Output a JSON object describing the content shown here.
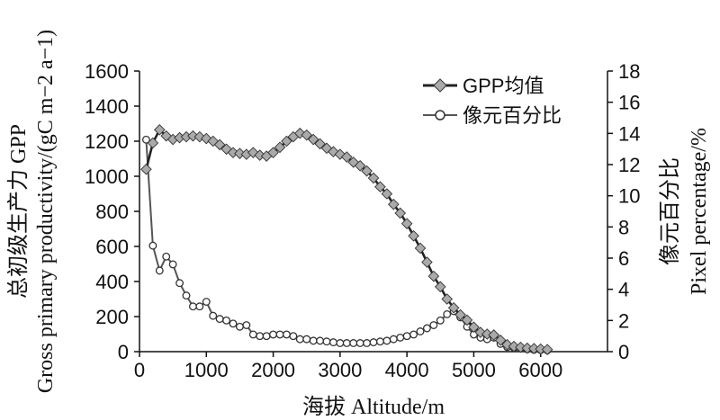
{
  "chart_data": {
    "type": "line",
    "xlabel": "海拔 Altitude/m",
    "ylabel_left": [
      "总初级生产力 GPP",
      "Gross primary productivity/(gC m−2 a−1)"
    ],
    "ylabel_right": [
      "像元百分比",
      "Pixel percentage/%"
    ],
    "xlim": [
      0,
      7000
    ],
    "ylim_left": [
      0,
      1600
    ],
    "ylim_right": [
      0,
      18
    ],
    "x_ticks": [
      "0",
      "1000",
      "2000",
      "3000",
      "4000",
      "5000",
      "6000"
    ],
    "y_left_ticks": [
      "0",
      "200",
      "400",
      "600",
      "800",
      "1000",
      "1200",
      "1400",
      "1600"
    ],
    "y_right_ticks": [
      "0",
      "2",
      "4",
      "6",
      "8",
      "10",
      "12",
      "14",
      "16",
      "18"
    ],
    "grid": false,
    "legend_position": "top-right",
    "series": [
      {
        "name": "GPP均值",
        "axis": "left",
        "marker": "diamond",
        "x": [
          100,
          200,
          300,
          400,
          500,
          600,
          700,
          800,
          900,
          1000,
          1100,
          1200,
          1300,
          1400,
          1500,
          1600,
          1700,
          1800,
          1900,
          2000,
          2100,
          2200,
          2300,
          2400,
          2500,
          2600,
          2700,
          2800,
          2900,
          3000,
          3100,
          3200,
          3300,
          3400,
          3500,
          3600,
          3700,
          3800,
          3900,
          4000,
          4100,
          4200,
          4300,
          4400,
          4500,
          4600,
          4700,
          4800,
          4900,
          5000,
          5100,
          5200,
          5300,
          5400,
          5500,
          5600,
          5700,
          5800,
          5900,
          6000,
          6100
        ],
        "y": [
          1040,
          1190,
          1265,
          1230,
          1210,
          1220,
          1225,
          1230,
          1225,
          1215,
          1200,
          1180,
          1155,
          1135,
          1130,
          1125,
          1135,
          1120,
          1115,
          1135,
          1165,
          1200,
          1225,
          1245,
          1235,
          1210,
          1185,
          1160,
          1140,
          1125,
          1110,
          1080,
          1060,
          1030,
          990,
          940,
          900,
          840,
          790,
          730,
          660,
          590,
          510,
          430,
          370,
          300,
          250,
          210,
          180,
          140,
          110,
          100,
          95,
          65,
          40,
          30,
          25,
          20,
          18,
          15,
          12
        ]
      },
      {
        "name": "像元百分比",
        "axis": "right",
        "marker": "circle",
        "x": [
          100,
          200,
          300,
          400,
          500,
          600,
          700,
          800,
          900,
          1000,
          1100,
          1200,
          1300,
          1400,
          1500,
          1600,
          1700,
          1800,
          1900,
          2000,
          2100,
          2200,
          2300,
          2400,
          2500,
          2600,
          2700,
          2800,
          2900,
          3000,
          3100,
          3200,
          3300,
          3400,
          3500,
          3600,
          3700,
          3800,
          3900,
          4000,
          4100,
          4200,
          4300,
          4400,
          4500,
          4600,
          4700,
          4800,
          4900,
          5000,
          5100,
          5200,
          5300,
          5400,
          5500,
          5600,
          5700,
          5800,
          5900,
          6000,
          6100
        ],
        "y": [
          13.6,
          6.8,
          5.2,
          6.1,
          5.6,
          4.4,
          3.6,
          2.9,
          2.9,
          3.2,
          2.3,
          2.1,
          2.0,
          1.8,
          1.6,
          1.7,
          1.1,
          1.0,
          1.0,
          1.1,
          1.1,
          1.1,
          1.0,
          0.8,
          0.8,
          0.7,
          0.7,
          0.65,
          0.6,
          0.55,
          0.55,
          0.55,
          0.55,
          0.55,
          0.6,
          0.65,
          0.7,
          0.8,
          0.9,
          1.0,
          1.1,
          1.3,
          1.5,
          1.7,
          2.0,
          2.4,
          2.6,
          2.2,
          1.6,
          1.1,
          0.9,
          0.8,
          0.9,
          0.5,
          0.3,
          0.25,
          0.2,
          0.15,
          0.12,
          0.1,
          0.08
        ]
      }
    ]
  }
}
